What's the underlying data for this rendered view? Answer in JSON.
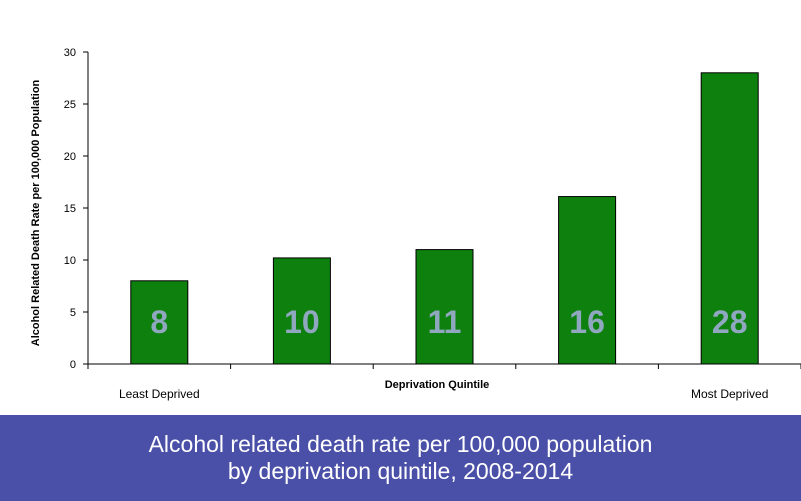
{
  "chart_data": {
    "type": "bar",
    "categories": [
      "Least Deprived",
      "",
      "",
      "",
      "Most Deprived"
    ],
    "values": [
      8,
      10.2,
      11,
      16.1,
      28
    ],
    "data_labels": [
      "8",
      "10",
      "11",
      "16",
      "28"
    ],
    "title": "",
    "xlabel": "Deprivation Quintile",
    "ylabel": "Alcohol Related Death Rate per 100,000 Population",
    "ylim": [
      0,
      30
    ],
    "yticks": [
      0,
      5,
      10,
      15,
      20,
      25,
      30
    ],
    "grid": false,
    "legend": "none",
    "colors": {
      "bar": "#0d800d",
      "bar_stroke": "#000000",
      "data_label": "#8fa7bf",
      "axis": "#000000"
    }
  },
  "banner": {
    "line1": "Alcohol related death rate per 100,000 population",
    "line2": "by deprivation quintile, 2008-2014",
    "background": "#4a4fa7"
  }
}
